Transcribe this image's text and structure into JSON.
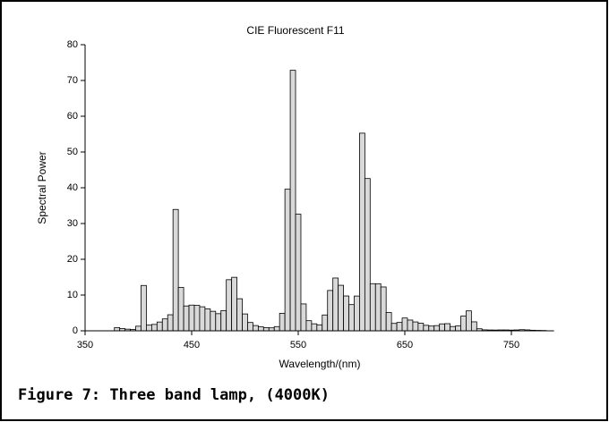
{
  "chart_data": {
    "type": "bar",
    "title": "CIE Fluorescent F11",
    "xlabel": "Wavelength/(nm)",
    "ylabel": "Spectral Power",
    "caption": "Figure 7: Three band lamp, (4000K)",
    "color": "#d9d9d9",
    "x": [
      380,
      385,
      390,
      395,
      400,
      405,
      410,
      415,
      420,
      425,
      430,
      435,
      440,
      445,
      450,
      455,
      460,
      465,
      470,
      475,
      480,
      485,
      490,
      495,
      500,
      505,
      510,
      515,
      520,
      525,
      530,
      535,
      540,
      545,
      550,
      555,
      560,
      565,
      570,
      575,
      580,
      585,
      590,
      595,
      600,
      605,
      610,
      615,
      620,
      625,
      630,
      635,
      640,
      645,
      650,
      655,
      660,
      665,
      670,
      675,
      680,
      685,
      690,
      695,
      700,
      705,
      710,
      715,
      720,
      725,
      730,
      735,
      740,
      745,
      750,
      755,
      760,
      765,
      770,
      775,
      780
    ],
    "values": [
      0.91,
      0.63,
      0.46,
      0.37,
      1.29,
      12.68,
      1.59,
      1.79,
      2.46,
      3.33,
      4.49,
      33.94,
      12.13,
      6.95,
      7.19,
      7.12,
      6.72,
      6.13,
      5.46,
      4.79,
      5.66,
      14.29,
      14.96,
      8.97,
      4.72,
      2.33,
      1.47,
      1.1,
      0.89,
      0.83,
      1.18,
      4.9,
      39.59,
      72.84,
      32.61,
      7.52,
      2.83,
      1.96,
      1.67,
      4.43,
      11.28,
      14.76,
      12.73,
      9.74,
      7.33,
      9.72,
      55.27,
      42.58,
      13.18,
      13.16,
      12.26,
      5.11,
      2.07,
      2.34,
      3.58,
      3.01,
      2.48,
      2.14,
      1.54,
      1.33,
      1.46,
      1.94,
      2.0,
      1.2,
      1.35,
      4.1,
      5.58,
      2.51,
      0.57,
      0.27,
      0.23,
      0.21,
      0.24,
      0.24,
      0.2,
      0.24,
      0.32,
      0.26,
      0.16,
      0.12,
      0.09
    ],
    "bar_width": 5,
    "xlim": [
      350,
      790
    ],
    "xticks": [
      350,
      450,
      550,
      650,
      750
    ],
    "ylim": [
      0,
      80
    ],
    "yticks": [
      0,
      10,
      20,
      30,
      40,
      50,
      60,
      70,
      80
    ]
  }
}
